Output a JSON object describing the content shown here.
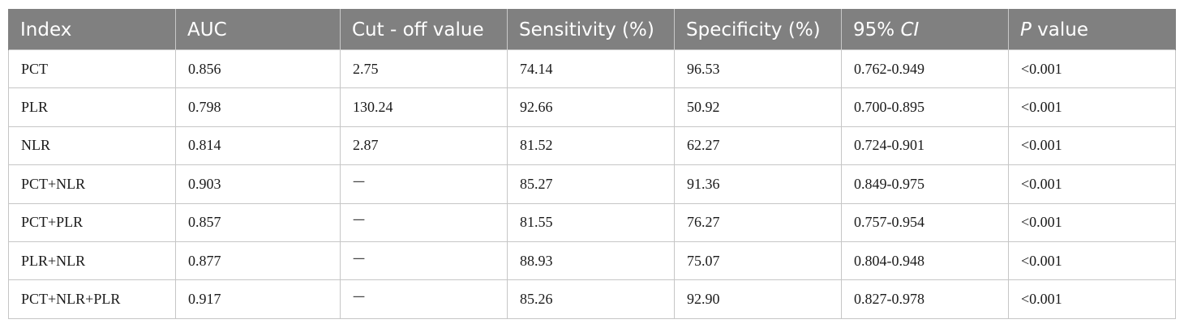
{
  "table": {
    "headers": [
      {
        "prefix": "",
        "italic": "",
        "suffix": "Index"
      },
      {
        "prefix": "",
        "italic": "",
        "suffix": "AUC"
      },
      {
        "prefix": "",
        "italic": "",
        "suffix": "Cut - off value"
      },
      {
        "prefix": "",
        "italic": "",
        "suffix": "Sensitivity (%)"
      },
      {
        "prefix": "",
        "italic": "",
        "suffix": "Specificity (%)"
      },
      {
        "prefix": "95% ",
        "italic": "CI",
        "suffix": ""
      },
      {
        "prefix": "",
        "italic": "P",
        "suffix": " value"
      }
    ],
    "rows": [
      [
        "PCT",
        "0.856",
        "2.75",
        "74.14",
        "96.53",
        "0.762-0.949",
        "<0.001"
      ],
      [
        "PLR",
        "0.798",
        "130.24",
        "92.66",
        "50.92",
        "0.700-0.895",
        "<0.001"
      ],
      [
        "NLR",
        "0.814",
        "2.87",
        "81.52",
        "62.27",
        "0.724-0.901",
        "<0.001"
      ],
      [
        "PCT+NLR",
        "0.903",
        "一",
        "85.27",
        "91.36",
        "0.849-0.975",
        "<0.001"
      ],
      [
        "PCT+PLR",
        "0.857",
        "一",
        "81.55",
        "76.27",
        "0.757-0.954",
        "<0.001"
      ],
      [
        "PLR+NLR",
        "0.877",
        "一",
        "88.93",
        "75.07",
        "0.804-0.948",
        "<0.001"
      ],
      [
        "PCT+NLR+PLR",
        "0.917",
        "一",
        "85.26",
        "92.90",
        "0.827-0.978",
        "<0.001"
      ]
    ]
  }
}
